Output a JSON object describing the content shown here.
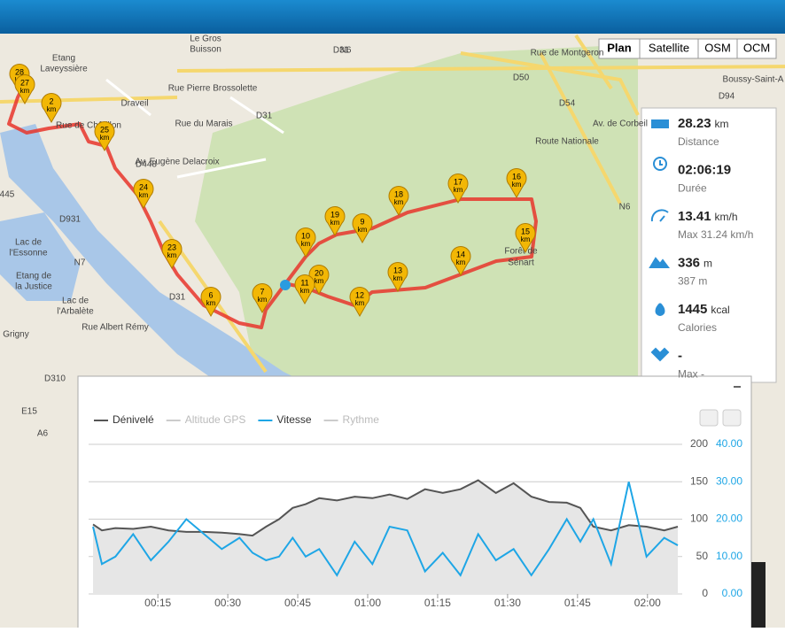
{
  "map": {
    "buttons": [
      "Plan",
      "Satellite",
      "OSM",
      "OCM"
    ],
    "places": [
      "Le Gros",
      "Buisson",
      "Draveil",
      "Etang",
      "Laveyssière",
      "Rue de Châtillon",
      "Av. Eugène Delacroix",
      "Rue du Marais",
      "Rue Pierre Brossolette",
      "D448",
      "D31",
      "N6",
      "D50",
      "D54",
      "D94",
      "Boussy-Saint-A",
      "Route Nationale",
      "Av. de Corbeil",
      "Rue de Montgeron",
      "Forêt de",
      "Sénart",
      "Lac de",
      "l'Essonne",
      "Etang de",
      "la Justice",
      "Lac de",
      "l'Arbalète",
      "Grigny",
      "Rue Albert Rémy",
      "D931",
      "N7",
      "D310",
      "E15",
      "A6",
      "445",
      "D31",
      "N6",
      "D31"
    ],
    "markers": [
      "28",
      "27",
      "2",
      "25",
      "24",
      "23",
      "6",
      "7",
      "10",
      "19",
      "9",
      "20",
      "11",
      "12",
      "13",
      "18",
      "17",
      "16",
      "15",
      "14"
    ],
    "marker_unit": "km"
  },
  "stats": [
    {
      "value": 28.23,
      "unit": "km",
      "label": "Distance"
    },
    {
      "value": "02:06:19",
      "label": "Durée"
    },
    {
      "value": 13.41,
      "unit": "km/h",
      "label": "Max 31.24 km/h"
    },
    {
      "value": 336,
      "unit": "m",
      "label": "387 m"
    },
    {
      "value": 1445,
      "unit": "kcal",
      "label": "Calories"
    },
    {
      "value": "-",
      "label": "Max -"
    }
  ],
  "chart_data": {
    "type": "line",
    "x": [
      1.1,
      3.0,
      5.9,
      9.7,
      13.5,
      17.3,
      21.1,
      24.9,
      28.7,
      32.5,
      35.3,
      38.2,
      41.0,
      43.9,
      46.7,
      49.6,
      53.4,
      57.2,
      61.0,
      64.7,
      68.5,
      72.3,
      76.1,
      79.9,
      83.7,
      87.5,
      91.3,
      95.1,
      98.9,
      102.7,
      105.6,
      108.4,
      112.2,
      116.0,
      119.8,
      123.6,
      126.5
    ],
    "series": [
      {
        "name": "Dénivelé",
        "color": "#555555",
        "fill": "#e6e6e6",
        "values": [
          93,
          85,
          88,
          87,
          90,
          85,
          83,
          83,
          82,
          80,
          78,
          90,
          100,
          115,
          120,
          128,
          125,
          130,
          128,
          133,
          127,
          140,
          135,
          140,
          152,
          135,
          148,
          130,
          123,
          122,
          115,
          90,
          85,
          92,
          90,
          85,
          90
        ]
      },
      {
        "name": "Altitude GPS",
        "color": "#cccccc",
        "visible": false
      },
      {
        "name": "Vitesse",
        "color": "#1ea6e6",
        "axis": "y2",
        "values": [
          18,
          8,
          10,
          16,
          9,
          14,
          20,
          16,
          12,
          15,
          11,
          9,
          10,
          15,
          10,
          12,
          5,
          14,
          8,
          18,
          17,
          6,
          11,
          5,
          16,
          9,
          12,
          5,
          12,
          20,
          14,
          20,
          8,
          30,
          10,
          15,
          13
        ]
      },
      {
        "name": "Rythme",
        "color": "#cccccc",
        "visible": false
      }
    ],
    "xlim": [
      1.1,
      126.5
    ],
    "xticks": [
      {
        "value": 15,
        "label": "00:15"
      },
      {
        "value": 30,
        "label": "00:30"
      },
      {
        "value": 45,
        "label": "00:45"
      },
      {
        "value": 60,
        "label": "01:00"
      },
      {
        "value": 75,
        "label": "01:15"
      },
      {
        "value": 90,
        "label": "01:30"
      },
      {
        "value": 105,
        "label": "01:45"
      },
      {
        "value": 120,
        "label": "02:00"
      }
    ],
    "ylim": [
      0,
      200
    ],
    "yticks": [
      0,
      50,
      100,
      150,
      200
    ],
    "y2lim": [
      0,
      40
    ],
    "y2ticks": [
      {
        "value": 0,
        "label": "0.00"
      },
      {
        "value": 10,
        "label": "10.00"
      },
      {
        "value": 20,
        "label": "20.00"
      },
      {
        "value": 30,
        "label": "30.00"
      },
      {
        "value": 40,
        "label": "40.00"
      }
    ],
    "grid": true
  }
}
